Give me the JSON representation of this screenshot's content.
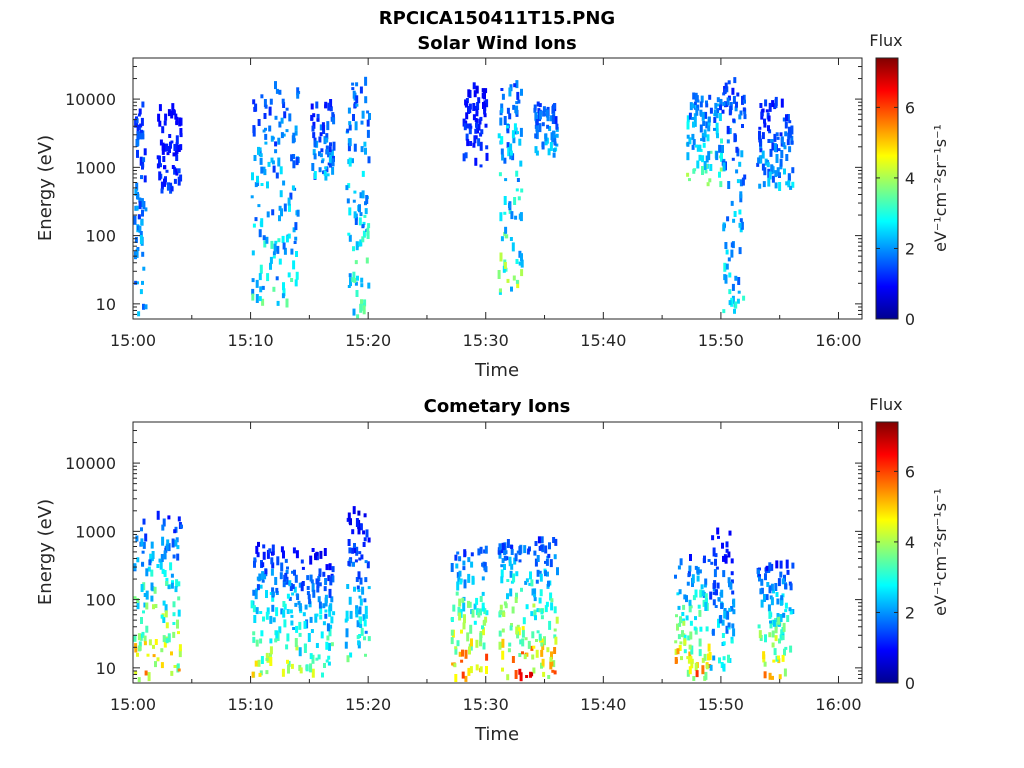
{
  "figure": {
    "title": "RPCICA150411T15.PNG"
  },
  "colorbar": {
    "label": "Flux",
    "unit": "eV⁻¹cm⁻²sr⁻¹s⁻¹",
    "ticks": [
      "0",
      "2",
      "4",
      "6"
    ],
    "range": [
      0,
      7.4
    ],
    "colormap": "jet"
  },
  "chart_data": [
    {
      "type": "heatmap",
      "title": "Solar Wind Ions",
      "xlabel": "Time",
      "ylabel": "Energy (eV)",
      "x_tick_labels": [
        "15:00",
        "15:10",
        "15:20",
        "15:30",
        "15:40",
        "15:50",
        "16:00"
      ],
      "y_tick_labels": [
        "10",
        "100",
        "1000",
        "10000"
      ],
      "y_scale": "log",
      "ylim": [
        6,
        40000
      ],
      "xlim": [
        "15:00",
        "16:02"
      ],
      "value_label": "Flux",
      "clusters": [
        {
          "t_start": "15:00",
          "t_end": "15:01",
          "e_min": 6,
          "e_max": 8000,
          "peak_flux": 3.0
        },
        {
          "t_start": "15:02",
          "t_end": "15:04",
          "e_min": 400,
          "e_max": 7000,
          "peak_flux": 1.6
        },
        {
          "t_start": "15:10",
          "t_end": "15:14",
          "e_min": 7,
          "e_max": 15000,
          "peak_flux": 3.8
        },
        {
          "t_start": "15:15",
          "t_end": "15:17",
          "e_min": 600,
          "e_max": 8000,
          "peak_flux": 2.8
        },
        {
          "t_start": "15:18",
          "t_end": "15:20",
          "e_min": 6,
          "e_max": 20000,
          "peak_flux": 4.0
        },
        {
          "t_start": "15:28",
          "t_end": "15:30",
          "e_min": 900,
          "e_max": 14000,
          "peak_flux": 1.8
        },
        {
          "t_start": "15:31",
          "t_end": "15:33",
          "e_min": 13,
          "e_max": 15000,
          "peak_flux": 4.6
        },
        {
          "t_start": "15:34",
          "t_end": "15:36",
          "e_min": 1200,
          "e_max": 8000,
          "peak_flux": 3.0
        },
        {
          "t_start": "15:47",
          "t_end": "15:50",
          "e_min": 500,
          "e_max": 10000,
          "peak_flux": 4.4
        },
        {
          "t_start": "15:50",
          "t_end": "15:52",
          "e_min": 6,
          "e_max": 18000,
          "peak_flux": 3.5
        },
        {
          "t_start": "15:53",
          "t_end": "15:56",
          "e_min": 400,
          "e_max": 8000,
          "peak_flux": 2.8
        }
      ]
    },
    {
      "type": "heatmap",
      "title": "Cometary Ions",
      "xlabel": "Time",
      "ylabel": "Energy (eV)",
      "x_tick_labels": [
        "15:00",
        "15:10",
        "15:20",
        "15:30",
        "15:40",
        "15:50",
        "16:00"
      ],
      "y_tick_labels": [
        "10",
        "100",
        "1000",
        "10000"
      ],
      "y_scale": "log",
      "ylim": [
        6,
        40000
      ],
      "xlim": [
        "15:00",
        "16:02"
      ],
      "value_label": "Flux",
      "clusters": [
        {
          "t_start": "15:00",
          "t_end": "15:04",
          "e_min": 6,
          "e_max": 1500,
          "peak_flux": 6.2
        },
        {
          "t_start": "15:10",
          "t_end": "15:14",
          "e_min": 7,
          "e_max": 600,
          "peak_flux": 5.2
        },
        {
          "t_start": "15:14",
          "t_end": "15:17",
          "e_min": 7,
          "e_max": 500,
          "peak_flux": 4.5
        },
        {
          "t_start": "15:18",
          "t_end": "15:20",
          "e_min": 12,
          "e_max": 1800,
          "peak_flux": 3.8
        },
        {
          "t_start": "15:27",
          "t_end": "15:30",
          "e_min": 6,
          "e_max": 500,
          "peak_flux": 7.0
        },
        {
          "t_start": "15:31",
          "t_end": "15:34",
          "e_min": 6,
          "e_max": 600,
          "peak_flux": 7.2
        },
        {
          "t_start": "15:34",
          "t_end": "15:36",
          "e_min": 6,
          "e_max": 700,
          "peak_flux": 6.5
        },
        {
          "t_start": "15:46",
          "t_end": "15:49",
          "e_min": 6,
          "e_max": 400,
          "peak_flux": 6.5
        },
        {
          "t_start": "15:49",
          "t_end": "15:51",
          "e_min": 8,
          "e_max": 900,
          "peak_flux": 3.8
        },
        {
          "t_start": "15:53",
          "t_end": "15:56",
          "e_min": 6,
          "e_max": 300,
          "peak_flux": 6.0
        }
      ]
    }
  ]
}
